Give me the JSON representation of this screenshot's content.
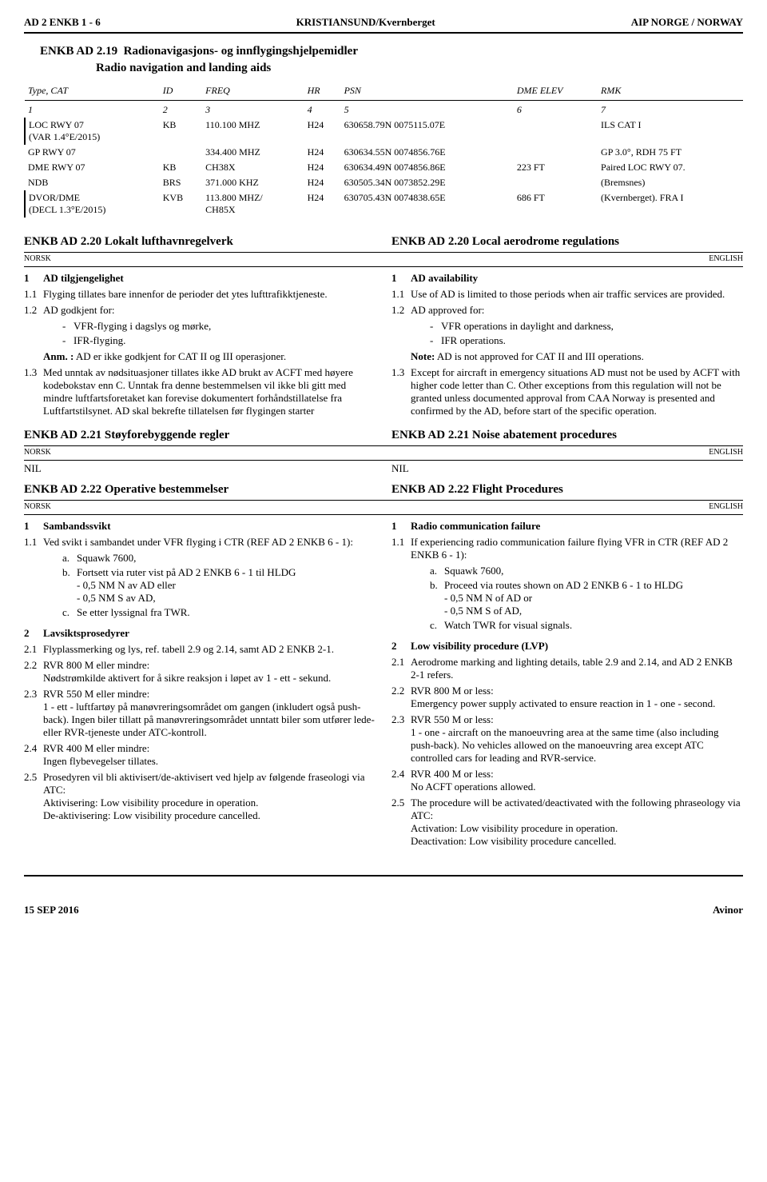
{
  "header": {
    "left": "AD 2 ENKB 1 - 6",
    "center": "KRISTIANSUND/Kvernberget",
    "right": "AIP NORGE / NORWAY"
  },
  "sec219": {
    "titleNo": "ENKB AD 2.19",
    "titleTxt1": "Radionavigasjons- og innflygingshjelpemidler",
    "titleTxt2": "Radio navigation and landing aids",
    "headers": [
      "Type, CAT",
      "ID",
      "FREQ",
      "HR",
      "PSN",
      "DME ELEV",
      "RMK"
    ],
    "colnums": [
      "1",
      "2",
      "3",
      "4",
      "5",
      "6",
      "7"
    ],
    "rows": [
      {
        "c": [
          "LOC RWY 07\n(VAR 1.4°E/2015)",
          "KB",
          "110.100 MHZ",
          "H24",
          "630658.79N 0075115.07E",
          "",
          "ILS CAT I"
        ]
      },
      {
        "c": [
          "GP RWY 07",
          "",
          "334.400 MHZ",
          "H24",
          "630634.55N 0074856.76E",
          "",
          "GP 3.0°, RDH 75 FT"
        ]
      },
      {
        "c": [
          "DME RWY 07",
          "KB",
          "CH38X",
          "H24",
          "630634.49N 0074856.86E",
          "223 FT",
          "Paired LOC RWY 07."
        ]
      },
      {
        "c": [
          "NDB",
          "BRS",
          "371.000 KHZ",
          "H24",
          "630505.34N 0073852.29E",
          "",
          "(Bremsnes)"
        ]
      },
      {
        "c": [
          "DVOR/DME\n(DECL 1.3°E/2015)",
          "KVB",
          "113.800 MHZ/\nCH85X",
          "H24",
          "630705.43N 0074838.65E",
          "686 FT",
          "(Kvernberget). FRA I"
        ]
      }
    ]
  },
  "sec220": {
    "left": "ENKB AD 2.20  Lokalt lufthavnregelverk",
    "right": "ENKB AD 2.20  Local aerodrome regulations",
    "langL": "NORSK",
    "langR": "ENGLISH",
    "L1": "AD tilgjengelighet",
    "R1": "AD availability",
    "L11": "Flyging tillates bare innenfor de perioder det ytes lufttrafikktjeneste.",
    "R11": "Use of AD is limited to those periods when air traffic services are provided.",
    "L12": "AD godkjent for:",
    "R12": "AD approved for:",
    "L12a": "VFR-flyging i dagslys og mørke,",
    "R12a": "VFR operations in daylight and darkness,",
    "L12b": "IFR-flyging.",
    "R12b": "IFR operations.",
    "Lnote": "Anm. :",
    "LnoteTxt": "AD er ikke godkjent for CAT II og III operasjoner.",
    "Rnote": "Note:",
    "RnoteTxt": "AD is not approved for CAT II and III operations.",
    "L13": "Med unntak av nødsituasjoner tillates ikke AD brukt av ACFT med høyere kodebokstav enn C. Unntak fra denne bestemmelsen vil ikke bli gitt med mindre luftfartsforetaket kan forevise dokumentert forhåndstillatelse fra Luftfartstilsynet. AD skal bekrefte tillatelsen før flygingen starter",
    "R13": "Except for aircraft in emergency situations AD must not be used by ACFT with higher code letter than C. Other exceptions from this regulation will not be granted unless documented approval from CAA Norway is presented and confirmed by the AD, before start of the specific operation."
  },
  "sec221": {
    "left": "ENKB AD 2.21  Støyforebyggende regler",
    "right": "ENKB AD 2.21  Noise abatement procedures",
    "langL": "NORSK",
    "langR": "ENGLISH",
    "nilL": "NIL",
    "nilR": "NIL"
  },
  "sec222": {
    "left": "ENKB AD 2.22  Operative bestemmelser",
    "right": "ENKB AD 2.22  Flight Procedures",
    "langL": "NORSK",
    "langR": "ENGLISH",
    "L1": "Sambandssvikt",
    "R1": "Radio communication failure",
    "L11": "Ved svikt i sambandet under VFR flyging i CTR (REF AD 2 ENKB 6 - 1):",
    "R11": "If experiencing radio communication failure flying VFR in CTR (REF AD 2 ENKB 6 - 1):",
    "L11a": "Squawk 7600,",
    "R11a": "Squawk 7600,",
    "L11b": "Fortsett via ruter vist på AD 2 ENKB 6 - 1 til HLDG\n- 0,5 NM N av AD eller\n- 0,5 NM S av AD,",
    "R11b": "Proceed via routes shown on AD 2 ENKB 6 - 1 to HLDG\n- 0,5 NM N of AD or\n- 0,5 NM S of AD,",
    "L11c": "Se etter lyssignal fra TWR.",
    "R11c": "Watch TWR for visual signals.",
    "L2": "Lavsiktsprosedyrer",
    "R2": "Low visibility procedure (LVP)",
    "L21": "Flyplassmerking og lys, ref. tabell 2.9 og 2.14, samt AD 2 ENKB 2-1.",
    "R21": "Aerodrome marking and lighting details, table 2.9 and 2.14, and AD 2 ENKB 2-1 refers.",
    "L22": "RVR 800 M eller mindre:\nNødstrømkilde aktivert for å sikre reaksjon i løpet av 1 - ett - sekund.",
    "R22": "RVR 800 M or less:\nEmergency power supply activated to ensure reaction in 1 - one - second.",
    "L23": "RVR 550 M eller mindre:\n1 - ett - luftfartøy på manøvreringsområdet om gangen (inkludert også push-back). Ingen biler tillatt på manøvreringsområdet unntatt biler som utfører lede- eller RVR-tjeneste under ATC-kontroll.",
    "R23": "RVR 550 M or less:\n1 - one - aircraft on the manoeuvring area at the same time (also including push-back). No vehicles allowed on the manoeuvring area except ATC controlled cars for leading and RVR-service.",
    "L24": "RVR 400 M eller mindre:\nIngen flybevegelser tillates.",
    "R24": "RVR 400 M or less:\nNo ACFT operations allowed.",
    "L25": "Prosedyren vil bli aktivisert/de-aktivisert ved hjelp av følgende fraseologi via ATC:\nAktivisering: Low visibility procedure in operation.\nDe-aktivisering: Low visibility procedure cancelled.",
    "R25": "The procedure will be activated/deactivated with the following phraseology via ATC:\nActivation: Low visibility procedure in operation.\nDeactivation: Low visibility procedure cancelled."
  },
  "footer": {
    "left": "15 SEP 2016",
    "right": "Avinor"
  }
}
